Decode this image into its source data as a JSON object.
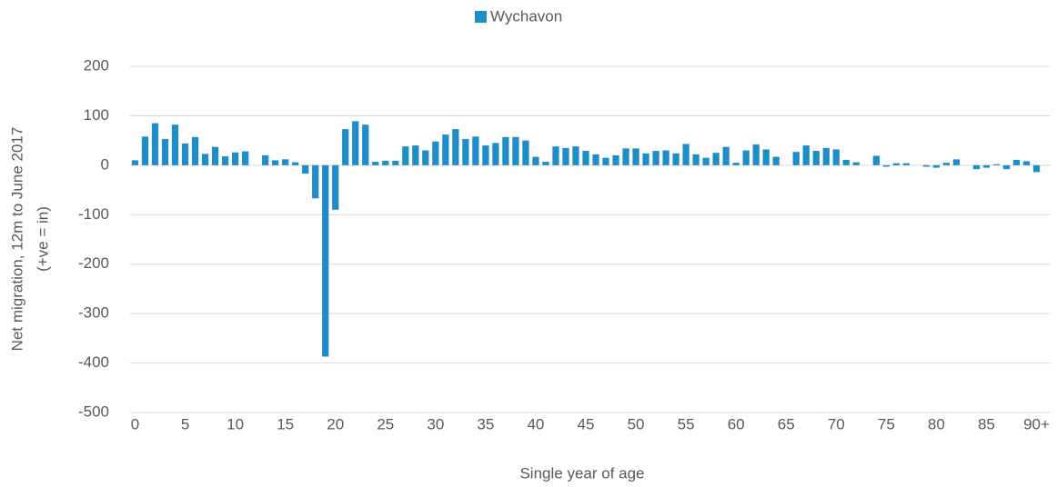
{
  "chart_data": {
    "type": "bar",
    "legend": "Wychavon",
    "xlabel": "Single year of age",
    "ylabel": [
      "Net migration, 12m to June 2017",
      "(+ve = in)"
    ],
    "color": "#1f8dc8",
    "categories": [
      "0",
      null,
      null,
      null,
      null,
      "5",
      null,
      null,
      null,
      null,
      "10",
      null,
      null,
      null,
      null,
      "15",
      null,
      null,
      null,
      null,
      "20",
      null,
      null,
      null,
      null,
      "25",
      null,
      null,
      null,
      null,
      "30",
      null,
      null,
      null,
      null,
      "35",
      null,
      null,
      null,
      null,
      "40",
      null,
      null,
      null,
      null,
      "45",
      null,
      null,
      null,
      null,
      "50",
      null,
      null,
      null,
      null,
      "55",
      null,
      null,
      null,
      null,
      "60",
      null,
      null,
      null,
      null,
      "65",
      null,
      null,
      null,
      null,
      "70",
      null,
      null,
      null,
      null,
      "75",
      null,
      null,
      null,
      null,
      "80",
      null,
      null,
      null,
      null,
      "85",
      null,
      null,
      null,
      null,
      "90+"
    ],
    "values": [
      10,
      58,
      85,
      53,
      82,
      44,
      57,
      23,
      37,
      18,
      26,
      28,
      0,
      20,
      10,
      12,
      6,
      -17,
      -67,
      -387,
      -90,
      73,
      89,
      82,
      7,
      9,
      9,
      38,
      40,
      30,
      48,
      62,
      73,
      53,
      58,
      40,
      45,
      57,
      57,
      50,
      17,
      7,
      38,
      35,
      38,
      29,
      22,
      15,
      20,
      34,
      34,
      24,
      29,
      30,
      24,
      43,
      22,
      15,
      25,
      37,
      5,
      30,
      42,
      32,
      17,
      0,
      27,
      40,
      29,
      35,
      32,
      11,
      6,
      0,
      19,
      -3,
      4,
      4,
      0,
      -3,
      -5,
      5,
      12,
      0,
      -8,
      -5,
      2,
      -8,
      11,
      8,
      -14
    ],
    "ylim": [
      -500,
      200
    ],
    "yticks": [
      -500,
      -400,
      -300,
      -200,
      -100,
      0,
      100,
      200
    ],
    "grid": true
  }
}
